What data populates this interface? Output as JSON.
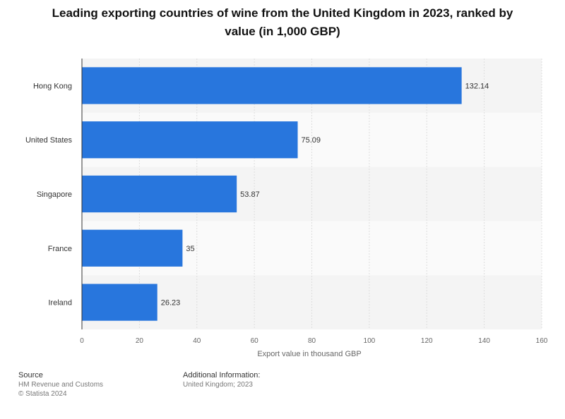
{
  "title": "Leading exporting countries of wine from the United Kingdom in 2023, ranked by value (in 1,000 GBP)",
  "chart_data": {
    "type": "bar",
    "orientation": "horizontal",
    "title": "Leading exporting countries of wine from the United Kingdom in 2023, ranked by value (in 1,000 GBP)",
    "categories": [
      "Hong Kong",
      "United States",
      "Singapore",
      "France",
      "Ireland"
    ],
    "values": [
      132.14,
      75.09,
      53.87,
      35,
      26.23
    ],
    "value_labels": [
      "132.14",
      "75.09",
      "53.87",
      "35",
      "26.23"
    ],
    "xlabel": "Export value in thousand GBP",
    "ylabel": "",
    "xlim": [
      0,
      160
    ],
    "x_ticks": [
      "0",
      "20",
      "40",
      "60",
      "80",
      "100",
      "120",
      "140",
      "160"
    ],
    "grid": true,
    "bar_color": "#2876dd"
  },
  "footer": {
    "source_heading": "Source",
    "source_lines": [
      "HM Revenue and Customs",
      "© Statista 2024"
    ],
    "info_heading": "Additional Information:",
    "info_lines": [
      "United Kingdom; 2023"
    ]
  }
}
